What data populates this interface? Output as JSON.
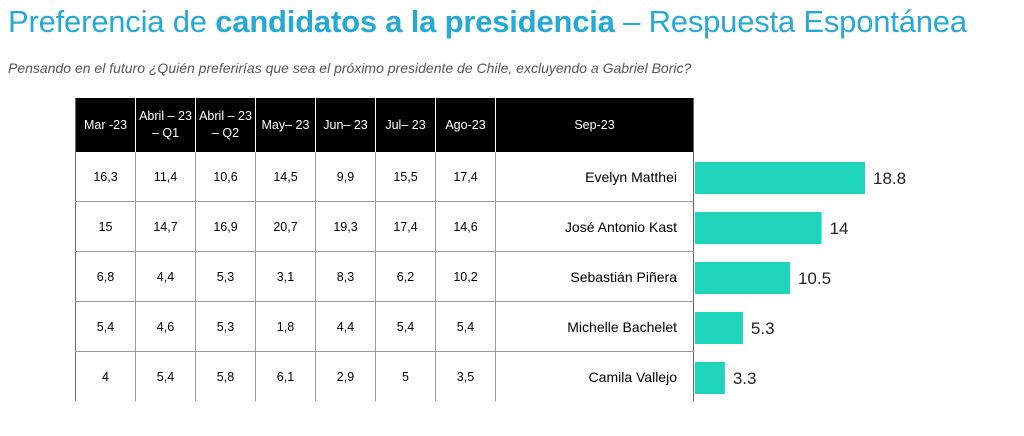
{
  "title_regular_1": "Preferencia de ",
  "title_bold": "candidatos a la presidencia",
  "title_regular_2": " – Respuesta Espontánea",
  "subtitle": "Pensando en el futuro ¿Quién preferirías que sea el próximo presidente de Chile, excluyendo a Gabriel Boric?",
  "colors": {
    "title": "#27a9d6",
    "bar": "#1ed4bb",
    "header_bg": "#000000"
  },
  "chart_data": {
    "type": "bar",
    "orientation": "horizontal",
    "table_columns": [
      "Mar -23",
      "Abril – 23 – Q1",
      "Abril – 23 – Q2",
      "May– 23",
      "Jun– 23",
      "Jul– 23",
      "Ago-23",
      "Sep-23"
    ],
    "rows": [
      {
        "candidate": "Evelyn Matthei",
        "history": [
          "16,3",
          "11,4",
          "10,6",
          "14,5",
          "9,9",
          "15,5",
          "17,4"
        ],
        "value": 18.8,
        "label": "18.8"
      },
      {
        "candidate": "José Antonio Kast",
        "history": [
          "15",
          "14,7",
          "16,9",
          "20,7",
          "19,3",
          "17,4",
          "14,6"
        ],
        "value": 14,
        "label": "14"
      },
      {
        "candidate": "Sebastián Piñera",
        "history": [
          "6,8",
          "4,4",
          "5,3",
          "3,1",
          "8,3",
          "6,2",
          "10,2"
        ],
        "value": 10.5,
        "label": "10.5"
      },
      {
        "candidate": "Michelle Bachelet",
        "history": [
          "5,4",
          "4,6",
          "5,3",
          "1,8",
          "4,4",
          "5,4",
          "5,4"
        ],
        "value": 5.3,
        "label": "5.3"
      },
      {
        "candidate": "Camila Vallejo",
        "history": [
          "4",
          "5,4",
          "5,8",
          "6,1",
          "2,9",
          "5",
          "3,5"
        ],
        "value": 3.3,
        "label": "3.3"
      }
    ],
    "series_label": "Sep-23",
    "xlim": [
      0,
      18.8
    ],
    "grid": false
  }
}
